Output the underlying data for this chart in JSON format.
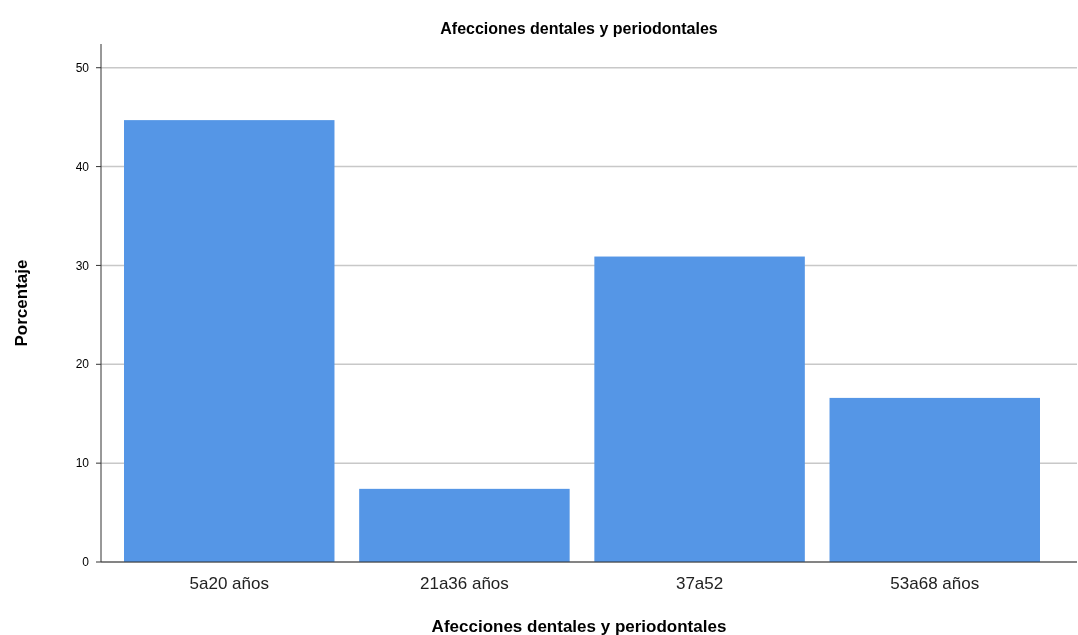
{
  "chart_data": {
    "type": "bar",
    "title": "Afecciones dentales y periodontales",
    "xlabel": "Afecciones dentales y periodontales",
    "ylabel": "Porcentaje",
    "categories": [
      "5a20 años",
      "21a36 años",
      "37a52",
      "53a68 años"
    ],
    "values": [
      44.7,
      7.4,
      30.9,
      16.6
    ],
    "color": "#5596e6",
    "ylim": [
      0,
      52.4
    ],
    "yticks": [
      0,
      10,
      20,
      30,
      40,
      50
    ],
    "grid": "y"
  }
}
